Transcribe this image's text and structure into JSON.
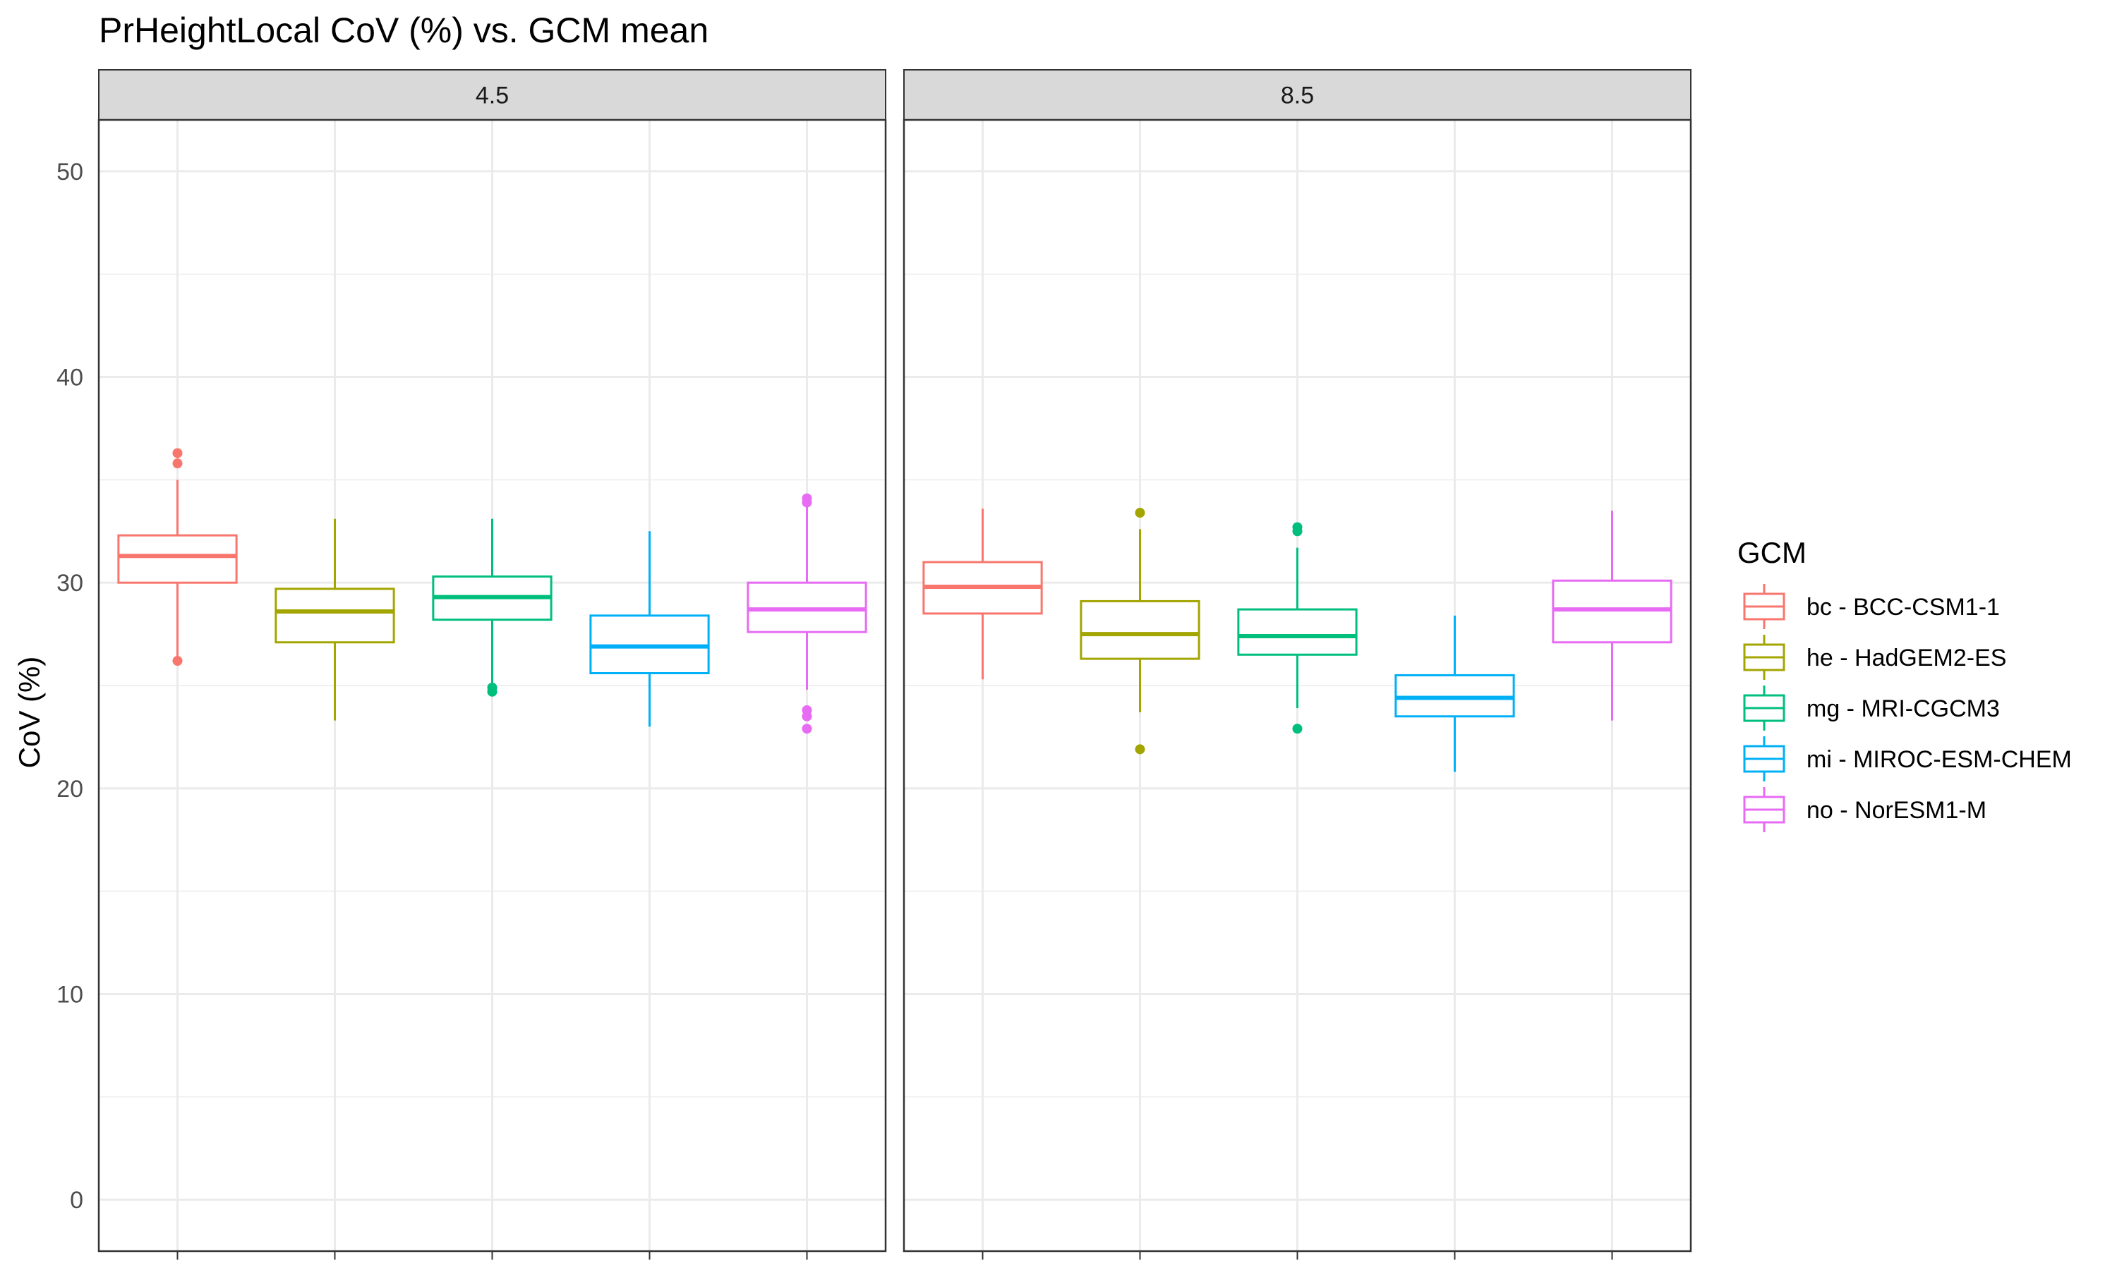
{
  "chart_data": {
    "type": "boxplot",
    "title": "PrHeightLocal CoV (%) vs. GCM mean",
    "xlabel": "",
    "ylabel": "CoV (%)",
    "ylim": [
      -2.5,
      52.5
    ],
    "yticks": [
      0,
      10,
      20,
      30,
      40,
      50
    ],
    "grid": true,
    "facets": [
      "4.5",
      "8.5"
    ],
    "legend": {
      "title": "GCM",
      "position": "right",
      "entries": [
        {
          "key": "bc",
          "label": "bc - BCC-CSM1-1",
          "color": "#F8766D"
        },
        {
          "key": "he",
          "label": "he - HadGEM2-ES",
          "color": "#A3A500"
        },
        {
          "key": "mg",
          "label": "mg - MRI-CGCM3",
          "color": "#00BF7D"
        },
        {
          "key": "mi",
          "label": "mi - MIROC-ESM-CHEM",
          "color": "#00B0F6"
        },
        {
          "key": "no",
          "label": "no - NorESM1-M",
          "color": "#E76BF3"
        }
      ]
    },
    "panels": [
      {
        "facet": "4.5",
        "boxes": [
          {
            "gcm": "bc",
            "whisker_low": 26.4,
            "q1": 30.0,
            "median": 31.3,
            "q3": 32.3,
            "whisker_high": 35.0,
            "outliers": [
              26.2,
              35.8,
              36.3
            ]
          },
          {
            "gcm": "he",
            "whisker_low": 23.3,
            "q1": 27.1,
            "median": 28.6,
            "q3": 29.7,
            "whisker_high": 33.1,
            "outliers": []
          },
          {
            "gcm": "mg",
            "whisker_low": 25.1,
            "q1": 28.2,
            "median": 29.3,
            "q3": 30.3,
            "whisker_high": 33.1,
            "outliers": [
              24.7,
              24.9
            ]
          },
          {
            "gcm": "mi",
            "whisker_low": 23.0,
            "q1": 25.6,
            "median": 26.9,
            "q3": 28.4,
            "whisker_high": 32.5,
            "outliers": []
          },
          {
            "gcm": "no",
            "whisker_low": 24.8,
            "q1": 27.6,
            "median": 28.7,
            "q3": 30.0,
            "whisker_high": 33.7,
            "outliers": [
              22.9,
              23.5,
              23.8,
              33.9,
              34.1
            ]
          }
        ]
      },
      {
        "facet": "8.5",
        "boxes": [
          {
            "gcm": "bc",
            "whisker_low": 25.3,
            "q1": 28.5,
            "median": 29.8,
            "q3": 31.0,
            "whisker_high": 33.6,
            "outliers": []
          },
          {
            "gcm": "he",
            "whisker_low": 23.7,
            "q1": 26.3,
            "median": 27.5,
            "q3": 29.1,
            "whisker_high": 32.6,
            "outliers": [
              21.9,
              33.4
            ]
          },
          {
            "gcm": "mg",
            "whisker_low": 23.9,
            "q1": 26.5,
            "median": 27.4,
            "q3": 28.7,
            "whisker_high": 31.7,
            "outliers": [
              22.9,
              32.5,
              32.7
            ]
          },
          {
            "gcm": "mi",
            "whisker_low": 20.8,
            "q1": 23.5,
            "median": 24.4,
            "q3": 25.5,
            "whisker_high": 28.4,
            "outliers": []
          },
          {
            "gcm": "no",
            "whisker_low": 23.3,
            "q1": 27.1,
            "median": 28.7,
            "q3": 30.1,
            "whisker_high": 33.5,
            "outliers": []
          }
        ]
      }
    ]
  }
}
